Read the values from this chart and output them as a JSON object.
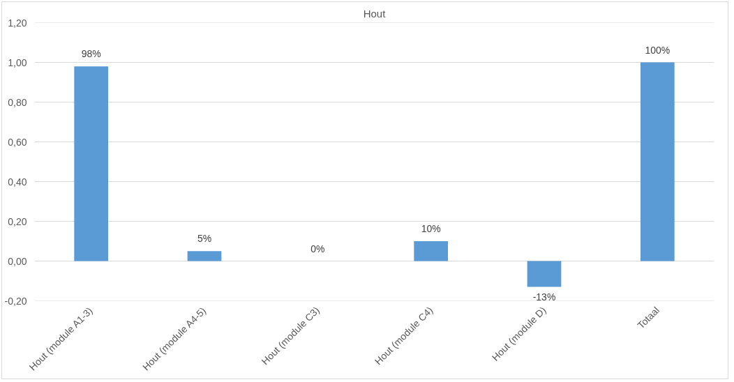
{
  "chart_data": {
    "type": "bar",
    "title": "Hout",
    "categories": [
      "Hout (module A1-3)",
      "Hout (module A4-5)",
      "Hout (module C3)",
      "Hout (module C4)",
      "Hout (module D)",
      "Totaal"
    ],
    "values": [
      0.98,
      0.05,
      0,
      0.1,
      -0.13,
      1.0
    ],
    "value_labels": [
      "98%",
      "5%",
      "0%",
      "10%",
      "-13%",
      "100%"
    ],
    "color": "#5b9bd5",
    "ylim": [
      -0.2,
      1.2
    ],
    "yticks": [
      {
        "value": -0.2,
        "label": "-0,20"
      },
      {
        "value": 0,
        "label": "0,00"
      },
      {
        "value": 0.2,
        "label": "0,20"
      },
      {
        "value": 0.4,
        "label": "0,40"
      },
      {
        "value": 0.6,
        "label": "0,60"
      },
      {
        "value": 0.8,
        "label": "0,80"
      },
      {
        "value": 1.0,
        "label": "1,00"
      },
      {
        "value": 1.2,
        "label": "1,20"
      }
    ],
    "grid": "y"
  }
}
